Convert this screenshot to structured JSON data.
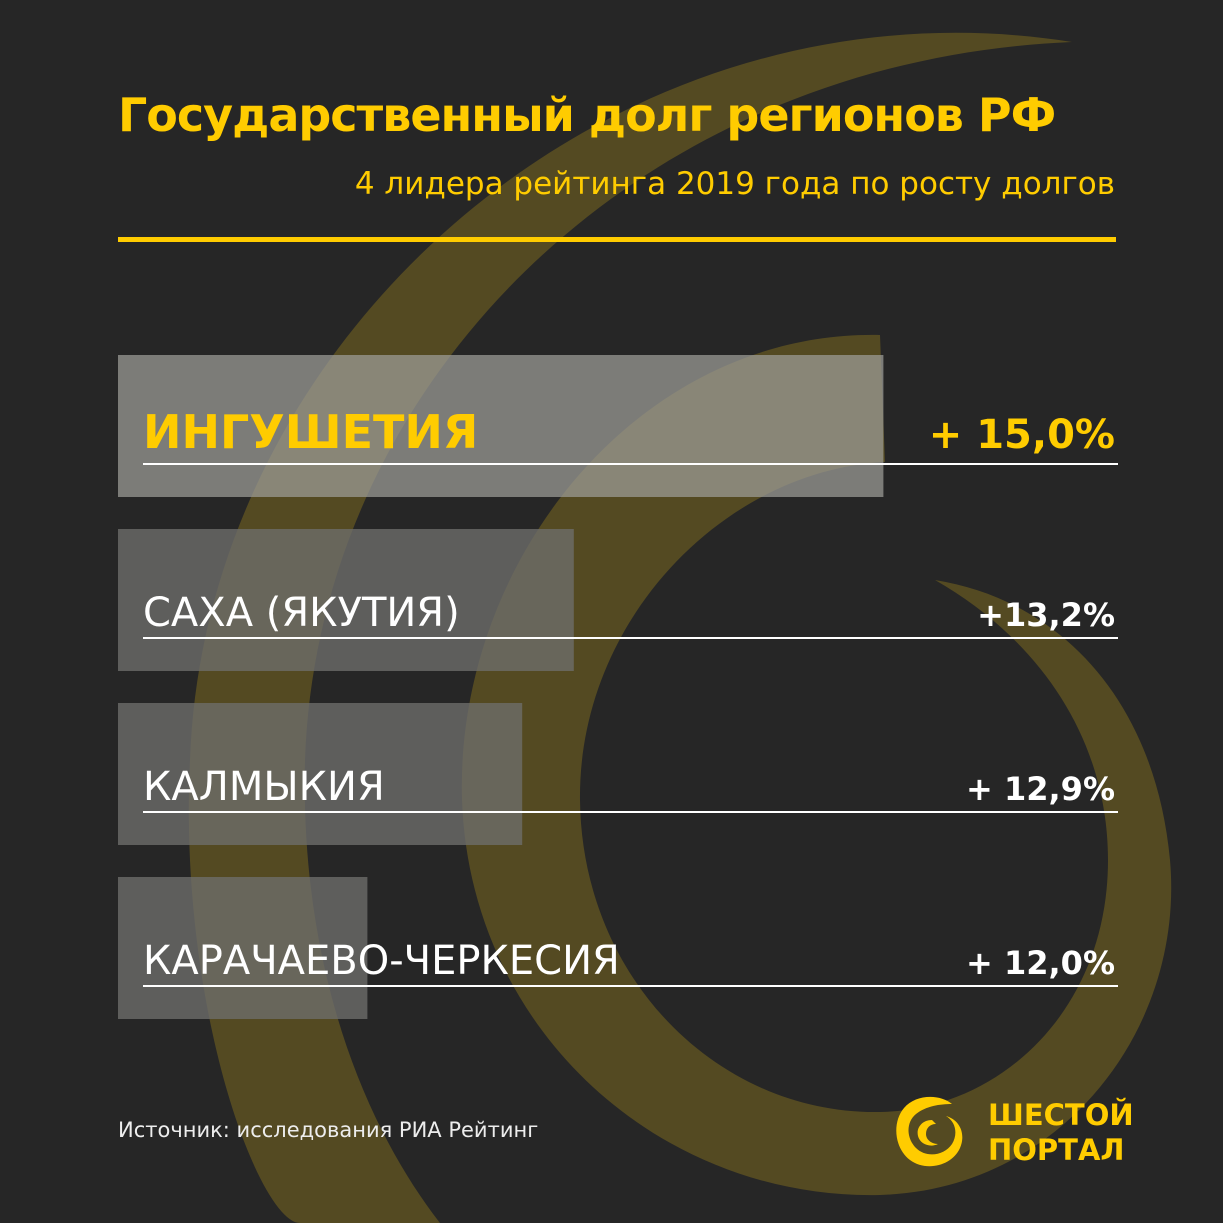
{
  "header": {
    "title": "Государственный долг регионов РФ",
    "subtitle": "4 лидера рейтинга 2019 года по росту долгов"
  },
  "colors": {
    "background": "#262626",
    "accent": "#FFCC00",
    "swirl": "#544A22",
    "bar_top": "#9E9E99",
    "bar_other": "#6E6E6C",
    "text_light": "#FFFFFF"
  },
  "chart_data": {
    "type": "bar",
    "orientation": "horizontal",
    "title": "Государственный долг регионов РФ",
    "subtitle": "4 лидера рейтинга 2019 года по росту долгов",
    "categories": [
      "ИНГУШЕТИЯ",
      "САХА (ЯКУТИЯ)",
      "КАЛМЫКИЯ",
      "КАРАЧАЕВО-ЧЕРКЕСИЯ"
    ],
    "values": [
      15.0,
      13.2,
      12.9,
      12.0
    ],
    "value_labels": [
      "+ 15,0%",
      "+13,2%",
      "+ 12,9%",
      "+ 12,0%"
    ],
    "unit": "%",
    "highlight_index": 0,
    "xlabel": "",
    "ylabel": "",
    "grid": false,
    "legend": "none"
  },
  "footer": {
    "source": "Источник: исследования РИА Рейтинг",
    "logo_line1": "ШЕСТОЙ",
    "logo_line2": "ПОРТАЛ",
    "logo_icon": "spiral-logo-icon"
  }
}
